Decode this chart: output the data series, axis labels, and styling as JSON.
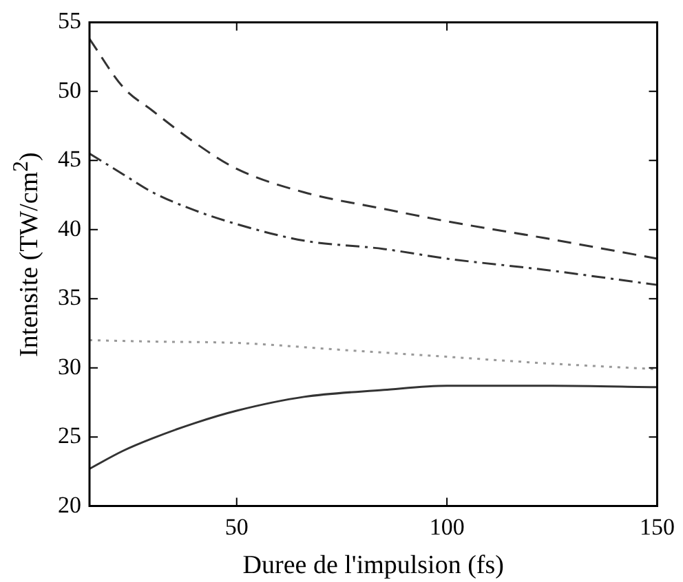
{
  "chart_data": {
    "type": "line",
    "xlabel": "Duree de l'impulsion (fs)",
    "ylabel": "Intensite (TW/cm$^{2}$)",
    "xlim": [
      15,
      150
    ],
    "xticks": [
      50,
      100,
      150
    ],
    "ylim": [
      20,
      55
    ],
    "yticks": [
      20,
      25,
      30,
      35,
      40,
      45,
      50,
      55
    ],
    "grid": false,
    "legend": false,
    "marker": "none",
    "series": [
      {
        "color": "#333333",
        "line_style": "dashed",
        "x": [
          15,
          23,
          30,
          40,
          50,
          66,
          85,
          100,
          123,
          150
        ],
        "values": [
          53.8,
          50.3,
          48.6,
          46.3,
          44.4,
          42.7,
          41.5,
          40.6,
          39.4,
          37.9
        ]
      },
      {
        "color": "#333333",
        "line_style": "dashdot",
        "x": [
          15,
          23,
          30,
          40,
          50,
          66,
          85,
          100,
          123,
          150
        ],
        "values": [
          45.5,
          44,
          42.7,
          41.4,
          40.4,
          39.2,
          38.6,
          37.9,
          37.1,
          36
        ]
      },
      {
        "color": "#999999",
        "line_style": "dotted",
        "x": [
          15,
          30,
          50,
          75,
          100,
          125,
          150
        ],
        "values": [
          32,
          31.9,
          31.8,
          31.3,
          30.8,
          30.3,
          29.9
        ]
      },
      {
        "color": "#333333",
        "line_style": "solid",
        "x": [
          15,
          23,
          30,
          40,
          50,
          66,
          85,
          100,
          125,
          150
        ],
        "values": [
          22.7,
          24,
          24.9,
          26,
          26.9,
          27.9,
          28.4,
          28.7,
          28.7,
          28.6
        ]
      }
    ]
  }
}
